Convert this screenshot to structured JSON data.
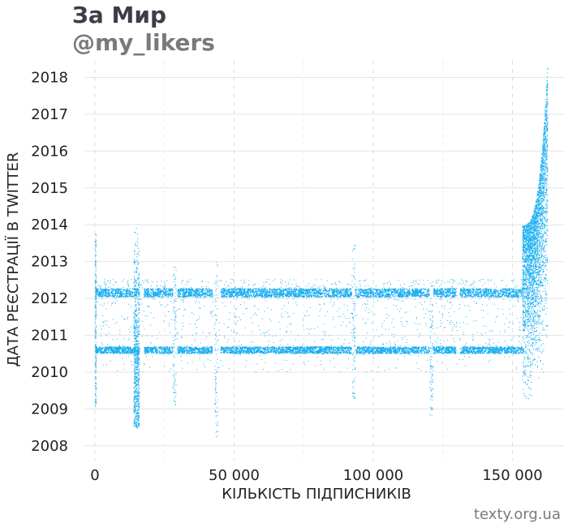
{
  "title": "За Мир",
  "subtitle": "@my_likers",
  "source": "texty.org.ua",
  "chart_data": {
    "type": "scatter",
    "xlabel": "КІЛЬКІСТЬ ПІДПИСНИКІВ",
    "ylabel": "ДАТА РЕЄСТРАЦІЇ В TWITTER",
    "x_ticks": [
      0,
      50000,
      100000,
      150000
    ],
    "x_tick_labels": [
      "0",
      "50 000",
      "100 000",
      "150 000"
    ],
    "y_ticks": [
      2008,
      2009,
      2010,
      2011,
      2012,
      2013,
      2014,
      2015,
      2016,
      2017,
      2018
    ],
    "y_tick_labels": [
      "2008",
      "2009",
      "2010",
      "2011",
      "2012",
      "2013",
      "2014",
      "2015",
      "2016",
      "2017",
      "2018"
    ],
    "xlim": [
      -3500,
      168500
    ],
    "ylim": [
      2007.6,
      2018.45
    ],
    "grid": true,
    "point_color": "#1aaef0",
    "series": [
      {
        "values": [
          {
            "x_range": [
              0,
              153500
            ],
            "y_range": [
              2010.52,
              2010.7
            ]
          },
          {
            "x_range": [
              0,
              153500
            ],
            "y_range": [
              2012.05,
              2012.28
            ]
          },
          {
            "x_range": [
              13800,
              15800
            ],
            "y_range": [
              2008.5,
              2014.05
            ]
          },
          {
            "x_range": [
              0,
              300
            ],
            "y_range": [
              2009.0,
              2013.75
            ]
          },
          {
            "x_range": [
              153500,
              162500
            ],
            "y_range": [
              2008.1,
              2018.3
            ]
          }
        ]
      }
    ]
  }
}
